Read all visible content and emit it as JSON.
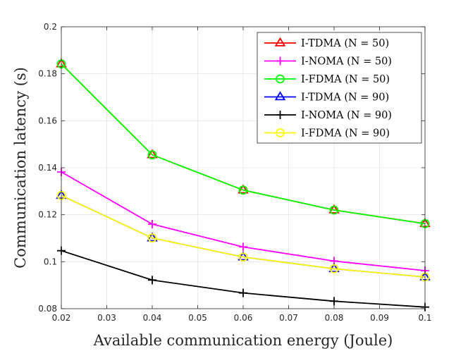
{
  "chart_data": {
    "type": "line",
    "title": "",
    "xlabel": "Available communication energy (Joule)",
    "ylabel": "Communication latency (s)",
    "xlim": [
      0.02,
      0.1
    ],
    "ylim": [
      0.08,
      0.2
    ],
    "x_ticks": [
      0.02,
      0.03,
      0.04,
      0.05,
      0.06,
      0.07,
      0.08,
      0.09,
      0.1
    ],
    "y_ticks": [
      0.08,
      0.1,
      0.12,
      0.14,
      0.16,
      0.18,
      0.2
    ],
    "x_tick_labels": [
      "0.02",
      "0.03",
      "0.04",
      "0.05",
      "0.06",
      "0.07",
      "0.08",
      "0.09",
      "0.1"
    ],
    "y_tick_labels": [
      "0.08",
      "0.1",
      "0.12",
      "0.14",
      "0.16",
      "0.18",
      "0.2"
    ],
    "grid": true,
    "legend_position": "top-right",
    "x": [
      0.02,
      0.04,
      0.06,
      0.08,
      0.1
    ],
    "series": [
      {
        "name": "I-TDMA (N = 50)",
        "color": "#ff0000",
        "marker": "triangle",
        "values": [
          0.1842,
          0.1455,
          0.1305,
          0.122,
          0.1162
        ]
      },
      {
        "name": "I-NOMA (N = 50)",
        "color": "#ff00ff",
        "marker": "plus",
        "values": [
          0.1382,
          0.116,
          0.1063,
          0.1003,
          0.0962
        ]
      },
      {
        "name": "I-FDMA (N = 50)",
        "color": "#00ff00",
        "marker": "circle",
        "values": [
          0.1842,
          0.1455,
          0.1305,
          0.122,
          0.1162
        ]
      },
      {
        "name": "I-TDMA (N = 90)",
        "color": "#0000ff",
        "marker": "triangle",
        "values": [
          0.1282,
          0.1101,
          0.102,
          0.097,
          0.0935
        ]
      },
      {
        "name": "I-NOMA (N = 90)",
        "color": "#000000",
        "marker": "plus",
        "values": [
          0.1047,
          0.0922,
          0.0867,
          0.0832,
          0.0807
        ]
      },
      {
        "name": "I-FDMA (N = 90)",
        "color": "#ffff00",
        "marker": "circle",
        "values": [
          0.1282,
          0.1101,
          0.102,
          0.097,
          0.0935
        ]
      }
    ]
  }
}
